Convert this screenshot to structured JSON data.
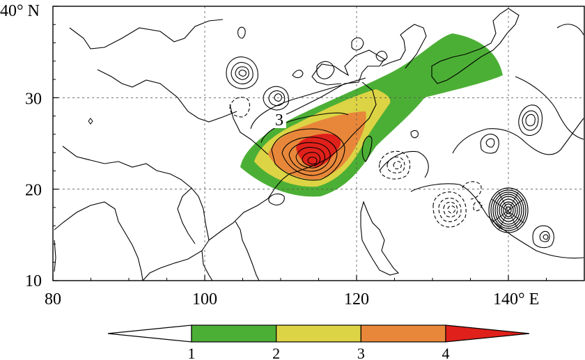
{
  "map": {
    "x_ticks": [
      {
        "value": 80,
        "label": "80"
      },
      {
        "value": 100,
        "label": "100"
      },
      {
        "value": 120,
        "label": "120"
      },
      {
        "value": 140,
        "label": "140° E"
      }
    ],
    "y_ticks": [
      {
        "value": 10,
        "label": "10"
      },
      {
        "value": 20,
        "label": "20"
      },
      {
        "value": 30,
        "label": "30"
      },
      {
        "value": 40,
        "label": "40° N"
      }
    ],
    "extent": {
      "lon": [
        80,
        150
      ],
      "lat": [
        10,
        40
      ]
    },
    "grid": true,
    "contour_label": "3",
    "shading_levels": [
      1,
      2,
      3,
      4
    ],
    "shading_colors": {
      "below_1": "#ffffff",
      "1_2": "#4caf35",
      "2_3": "#dcd444",
      "3_4": "#e8873a",
      "above_4": "#e0201a"
    }
  },
  "colorbar": {
    "labels": [
      "1",
      "2",
      "3",
      "4"
    ],
    "colors": [
      "#ffffff",
      "#4caf35",
      "#dcd444",
      "#e8873a",
      "#e0201a"
    ]
  }
}
